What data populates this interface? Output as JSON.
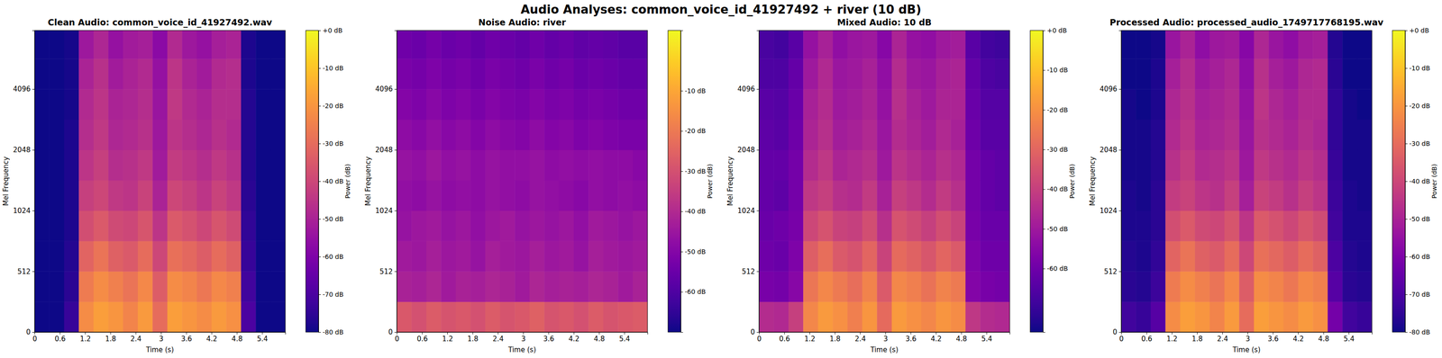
{
  "title": "Audio Analyses: common_voice_id_41927492 + river (10 dB)",
  "chart_data": [
    {
      "type": "heatmap",
      "title": "Clean Audio: common_voice_id_41927492.wav",
      "x_label": "Time (s)",
      "y_label": "Mel Frequency",
      "color": "plasma",
      "xlim": [
        0,
        5.95
      ],
      "xticks": [
        0,
        0.6,
        1.2,
        1.8,
        2.4,
        3,
        3.6,
        4.2,
        4.8,
        5.4
      ],
      "ylim": [
        0,
        8000
      ],
      "yticks": [
        0,
        512,
        1024,
        2048,
        4096
      ],
      "time_bins": [
        0,
        0.35,
        0.7,
        1.05,
        1.4,
        1.75,
        2.1,
        2.45,
        2.8,
        3.15,
        3.5,
        3.85,
        4.2,
        4.55,
        4.9,
        5.25,
        5.6,
        5.95
      ],
      "freq_bins": [
        0,
        256,
        512,
        768,
        1024,
        1448,
        2048,
        2896,
        4096,
        5793,
        8000
      ],
      "cells": [
        [
          -80,
          -80,
          -74,
          -22,
          -18,
          -20,
          -24,
          -19,
          -30,
          -18,
          -20,
          -22,
          -19,
          -21,
          -70,
          -80,
          -80
        ],
        [
          -80,
          -80,
          -76,
          -26,
          -22,
          -25,
          -28,
          -23,
          -34,
          -22,
          -24,
          -27,
          -23,
          -25,
          -72,
          -80,
          -80
        ],
        [
          -80,
          -80,
          -77,
          -32,
          -28,
          -33,
          -35,
          -30,
          -40,
          -29,
          -31,
          -34,
          -30,
          -33,
          -74,
          -80,
          -80
        ],
        [
          -80,
          -80,
          -78,
          -38,
          -35,
          -39,
          -40,
          -36,
          -45,
          -35,
          -37,
          -40,
          -36,
          -39,
          -75,
          -80,
          -80
        ],
        [
          -80,
          -80,
          -78,
          -42,
          -40,
          -44,
          -45,
          -41,
          -50,
          -40,
          -42,
          -45,
          -41,
          -44,
          -76,
          -80,
          -80
        ],
        [
          -80,
          -80,
          -78,
          -45,
          -42,
          -47,
          -46,
          -44,
          -52,
          -43,
          -45,
          -47,
          -44,
          -46,
          -77,
          -80,
          -80
        ],
        [
          -80,
          -80,
          -78,
          -47,
          -44,
          -49,
          -48,
          -46,
          -53,
          -45,
          -47,
          -49,
          -46,
          -48,
          -77,
          -80,
          -80
        ],
        [
          -80,
          -80,
          -79,
          -48,
          -45,
          -50,
          -49,
          -47,
          -54,
          -44,
          -48,
          -50,
          -47,
          -47,
          -77,
          -80,
          -80
        ],
        [
          -80,
          -80,
          -79,
          -50,
          -46,
          -52,
          -50,
          -48,
          -55,
          -45,
          -50,
          -52,
          -48,
          -47,
          -78,
          -80,
          -80
        ],
        [
          -80,
          -80,
          -79,
          -53,
          -49,
          -55,
          -52,
          -51,
          -57,
          -48,
          -53,
          -55,
          -51,
          -50,
          -78,
          -80,
          -80
        ]
      ],
      "colorbar": {
        "label": "Power (dB)",
        "range": [
          -80,
          0
        ],
        "ticks": [
          {
            "value": 0,
            "label": "+0 dB"
          },
          {
            "value": -10,
            "label": "-10 dB"
          },
          {
            "value": -20,
            "label": "-20 dB"
          },
          {
            "value": -30,
            "label": "-30 dB"
          },
          {
            "value": -40,
            "label": "-40 dB"
          },
          {
            "value": -50,
            "label": "-50 dB"
          },
          {
            "value": -60,
            "label": "-60 dB"
          },
          {
            "value": -70,
            "label": "-70 dB"
          },
          {
            "value": -80,
            "label": "-80 dB"
          }
        ]
      }
    },
    {
      "type": "heatmap",
      "title": "Noise Audio: river",
      "x_label": "Time (s)",
      "y_label": "Mel Frequency",
      "color": "plasma",
      "xlim": [
        0,
        5.95
      ],
      "xticks": [
        0,
        0.6,
        1.2,
        1.8,
        2.4,
        3,
        3.6,
        4.2,
        4.8,
        5.4
      ],
      "ylim": [
        0,
        8000
      ],
      "yticks": [
        0,
        512,
        1024,
        2048,
        4096
      ],
      "time_bins": [
        0,
        0.35,
        0.7,
        1.05,
        1.4,
        1.75,
        2.1,
        2.45,
        2.8,
        3.15,
        3.5,
        3.85,
        4.2,
        4.55,
        4.9,
        5.25,
        5.6,
        5.95
      ],
      "freq_bins": [
        0,
        256,
        512,
        768,
        1024,
        1448,
        2048,
        2896,
        4096,
        5793,
        8000
      ],
      "cells": [
        [
          -28,
          -30,
          -27,
          -29,
          -28,
          -30,
          -27,
          -29,
          -28,
          -26,
          -29,
          -28,
          -30,
          -27,
          -29,
          -28,
          -27
        ],
        [
          -42,
          -43,
          -41,
          -44,
          -42,
          -43,
          -41,
          -42,
          -44,
          -41,
          -43,
          -42,
          -43,
          -41,
          -42,
          -44,
          -42
        ],
        [
          -44,
          -45,
          -43,
          -45,
          -44,
          -46,
          -43,
          -44,
          -45,
          -43,
          -45,
          -44,
          -46,
          -43,
          -44,
          -45,
          -44
        ],
        [
          -46,
          -45,
          -44,
          -46,
          -45,
          -47,
          -45,
          -44,
          -46,
          -45,
          -46,
          -45,
          -47,
          -44,
          -45,
          -46,
          -45
        ],
        [
          -47,
          -48,
          -46,
          -48,
          -47,
          -48,
          -46,
          -47,
          -48,
          -46,
          -47,
          -48,
          -49,
          -47,
          -48,
          -47,
          -48
        ],
        [
          -46,
          -47,
          -45,
          -47,
          -46,
          -48,
          -46,
          -47,
          -47,
          -46,
          -48,
          -47,
          -48,
          -47,
          -48,
          -48,
          -49
        ],
        [
          -48,
          -49,
          -47,
          -49,
          -48,
          -50,
          -48,
          -49,
          -50,
          -48,
          -50,
          -49,
          -51,
          -50,
          -51,
          -52,
          -52
        ],
        [
          -50,
          -51,
          -49,
          -51,
          -50,
          -52,
          -50,
          -51,
          -52,
          -50,
          -52,
          -51,
          -53,
          -52,
          -53,
          -54,
          -54
        ],
        [
          -52,
          -53,
          -51,
          -53,
          -52,
          -54,
          -52,
          -53,
          -54,
          -52,
          -54,
          -53,
          -55,
          -54,
          -55,
          -56,
          -56
        ],
        [
          -54,
          -55,
          -53,
          -55,
          -54,
          -56,
          -54,
          -55,
          -56,
          -54,
          -56,
          -55,
          -57,
          -56,
          -57,
          -58,
          -58
        ]
      ],
      "colorbar": {
        "label": "Power (dB)",
        "range": [
          -70,
          5
        ],
        "ticks": [
          {
            "value": -10,
            "label": "-10 dB"
          },
          {
            "value": -20,
            "label": "-20 dB"
          },
          {
            "value": -30,
            "label": "-30 dB"
          },
          {
            "value": -40,
            "label": "-40 dB"
          },
          {
            "value": -50,
            "label": "-50 dB"
          },
          {
            "value": -60,
            "label": "-60 dB"
          }
        ]
      }
    },
    {
      "type": "heatmap",
      "title": "Mixed Audio: 10 dB",
      "x_label": "Time (s)",
      "y_label": "Mel Frequency",
      "color": "plasma",
      "xlim": [
        0,
        5.95
      ],
      "xticks": [
        0,
        0.6,
        1.2,
        1.8,
        2.4,
        3,
        3.6,
        4.2,
        4.8,
        5.4
      ],
      "ylim": [
        0,
        8000
      ],
      "yticks": [
        0,
        512,
        1024,
        2048,
        4096
      ],
      "time_bins": [
        0,
        0.35,
        0.7,
        1.05,
        1.4,
        1.75,
        2.1,
        2.45,
        2.8,
        3.15,
        3.5,
        3.85,
        4.2,
        4.55,
        4.9,
        5.25,
        5.6,
        5.95
      ],
      "freq_bins": [
        0,
        256,
        512,
        768,
        1024,
        1448,
        2048,
        2896,
        4096,
        5793,
        8000
      ],
      "cells": [
        [
          -45,
          -46,
          -40,
          -22,
          -18,
          -20,
          -24,
          -19,
          -29,
          -18,
          -20,
          -22,
          -19,
          -21,
          -42,
          -45,
          -46
        ],
        [
          -58,
          -59,
          -55,
          -26,
          -22,
          -25,
          -28,
          -23,
          -33,
          -22,
          -24,
          -27,
          -23,
          -25,
          -56,
          -58,
          -59
        ],
        [
          -60,
          -61,
          -57,
          -32,
          -28,
          -33,
          -35,
          -30,
          -39,
          -29,
          -31,
          -34,
          -30,
          -33,
          -57,
          -60,
          -60
        ],
        [
          -61,
          -60,
          -58,
          -38,
          -35,
          -39,
          -40,
          -36,
          -44,
          -35,
          -37,
          -40,
          -36,
          -39,
          -58,
          -61,
          -61
        ],
        [
          -62,
          -63,
          -59,
          -42,
          -40,
          -44,
          -45,
          -41,
          -48,
          -40,
          -42,
          -45,
          -41,
          -44,
          -59,
          -62,
          -63
        ],
        [
          -62,
          -62,
          -59,
          -45,
          -42,
          -47,
          -46,
          -44,
          -50,
          -43,
          -45,
          -47,
          -44,
          -46,
          -59,
          -62,
          -63
        ],
        [
          -63,
          -64,
          -60,
          -47,
          -44,
          -49,
          -48,
          -46,
          -51,
          -45,
          -47,
          -49,
          -46,
          -48,
          -60,
          -64,
          -64
        ],
        [
          -64,
          -65,
          -61,
          -48,
          -45,
          -50,
          -49,
          -47,
          -52,
          -44,
          -48,
          -50,
          -47,
          -47,
          -61,
          -65,
          -65
        ],
        [
          -66,
          -66,
          -62,
          -50,
          -46,
          -51,
          -50,
          -48,
          -53,
          -45,
          -50,
          -51,
          -48,
          -47,
          -62,
          -66,
          -67
        ],
        [
          -67,
          -68,
          -64,
          -52,
          -48,
          -53,
          -51,
          -50,
          -55,
          -47,
          -52,
          -53,
          -50,
          -49,
          -64,
          -68,
          -69
        ]
      ],
      "colorbar": {
        "label": "Power (dB)",
        "range": [
          -76,
          0
        ],
        "ticks": [
          {
            "value": 0,
            "label": "+0 dB"
          },
          {
            "value": -10,
            "label": "-10 dB"
          },
          {
            "value": -20,
            "label": "-20 dB"
          },
          {
            "value": -30,
            "label": "-30 dB"
          },
          {
            "value": -40,
            "label": "-40 dB"
          },
          {
            "value": -50,
            "label": "-50 dB"
          },
          {
            "value": -60,
            "label": "-60 dB"
          }
        ]
      }
    },
    {
      "type": "heatmap",
      "title": "Processed Audio: processed_audio_1749717768195.wav",
      "x_label": "Time (s)",
      "y_label": "Mel Frequency",
      "color": "plasma",
      "xlim": [
        0,
        5.95
      ],
      "xticks": [
        0,
        0.6,
        1.2,
        1.8,
        2.4,
        3,
        3.6,
        4.2,
        4.8,
        5.4
      ],
      "ylim": [
        0,
        8000
      ],
      "yticks": [
        0,
        512,
        1024,
        2048,
        4096
      ],
      "time_bins": [
        0,
        0.35,
        0.7,
        1.05,
        1.4,
        1.75,
        2.1,
        2.45,
        2.8,
        3.15,
        3.5,
        3.85,
        4.2,
        4.55,
        4.9,
        5.25,
        5.6,
        5.95
      ],
      "freq_bins": [
        0,
        256,
        512,
        768,
        1024,
        1448,
        2048,
        2896,
        4096,
        5793,
        8000
      ],
      "cells": [
        [
          -72,
          -74,
          -68,
          -22,
          -18,
          -20,
          -24,
          -19,
          -30,
          -18,
          -20,
          -22,
          -19,
          -21,
          -62,
          -72,
          -74
        ],
        [
          -76,
          -77,
          -73,
          -26,
          -22,
          -25,
          -28,
          -23,
          -34,
          -22,
          -24,
          -27,
          -23,
          -25,
          -68,
          -76,
          -77
        ],
        [
          -77,
          -78,
          -75,
          -32,
          -28,
          -33,
          -35,
          -30,
          -40,
          -29,
          -31,
          -34,
          -30,
          -33,
          -70,
          -77,
          -78
        ],
        [
          -78,
          -78,
          -76,
          -38,
          -35,
          -39,
          -40,
          -36,
          -45,
          -35,
          -37,
          -40,
          -36,
          -39,
          -72,
          -78,
          -78
        ],
        [
          -78,
          -79,
          -76,
          -43,
          -41,
          -45,
          -46,
          -42,
          -51,
          -41,
          -43,
          -46,
          -42,
          -45,
          -73,
          -78,
          -79
        ],
        [
          -79,
          -79,
          -77,
          -46,
          -43,
          -48,
          -47,
          -45,
          -53,
          -44,
          -46,
          -48,
          -45,
          -47,
          -74,
          -79,
          -79
        ],
        [
          -79,
          -79,
          -77,
          -48,
          -45,
          -50,
          -49,
          -47,
          -54,
          -46,
          -48,
          -50,
          -47,
          -49,
          -75,
          -79,
          -79
        ],
        [
          -79,
          -80,
          -78,
          -49,
          -46,
          -51,
          -50,
          -48,
          -55,
          -45,
          -49,
          -51,
          -48,
          -48,
          -75,
          -79,
          -80
        ],
        [
          -80,
          -80,
          -78,
          -51,
          -47,
          -53,
          -51,
          -49,
          -56,
          -46,
          -51,
          -53,
          -49,
          -48,
          -76,
          -80,
          -80
        ],
        [
          -80,
          -80,
          -79,
          -54,
          -50,
          -56,
          -53,
          -52,
          -58,
          -49,
          -54,
          -56,
          -52,
          -51,
          -77,
          -80,
          -80
        ]
      ],
      "colorbar": {
        "label": "Power (dB)",
        "range": [
          -80,
          0
        ],
        "ticks": [
          {
            "value": 0,
            "label": "+0 dB"
          },
          {
            "value": -10,
            "label": "-10 dB"
          },
          {
            "value": -20,
            "label": "-20 dB"
          },
          {
            "value": -30,
            "label": "-30 dB"
          },
          {
            "value": -40,
            "label": "-40 dB"
          },
          {
            "value": -50,
            "label": "-50 dB"
          },
          {
            "value": -60,
            "label": "-60 dB"
          },
          {
            "value": -70,
            "label": "-70 dB"
          },
          {
            "value": -80,
            "label": "-80 dB"
          }
        ]
      }
    }
  ]
}
